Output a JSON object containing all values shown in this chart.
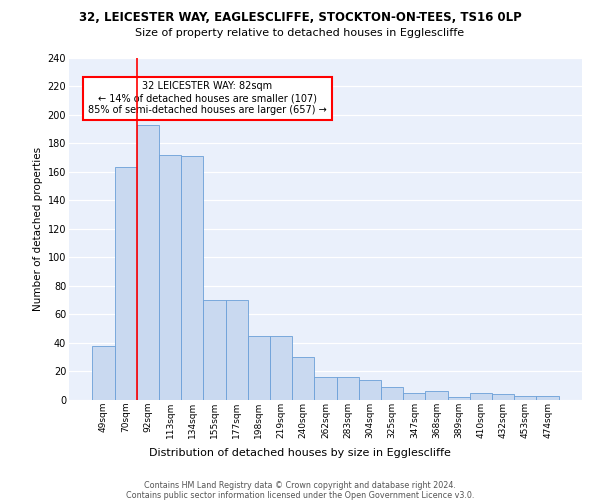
{
  "title1": "32, LEICESTER WAY, EAGLESCLIFFE, STOCKTON-ON-TEES, TS16 0LP",
  "title2": "Size of property relative to detached houses in Egglescliffe",
  "xlabel": "Distribution of detached houses by size in Egglescliffe",
  "ylabel": "Number of detached properties",
  "categories": [
    "49sqm",
    "70sqm",
    "92sqm",
    "113sqm",
    "134sqm",
    "155sqm",
    "177sqm",
    "198sqm",
    "219sqm",
    "240sqm",
    "262sqm",
    "283sqm",
    "304sqm",
    "325sqm",
    "347sqm",
    "368sqm",
    "389sqm",
    "410sqm",
    "432sqm",
    "453sqm",
    "474sqm"
  ],
  "values": [
    38,
    163,
    193,
    172,
    171,
    70,
    70,
    45,
    45,
    30,
    16,
    16,
    14,
    9,
    5,
    6,
    2,
    5,
    4,
    3,
    3
  ],
  "bar_color": "#c9d9f0",
  "bar_edge_color": "#6a9fd8",
  "redline_x": 1.5,
  "annotation_text": "32 LEICESTER WAY: 82sqm\n← 14% of detached houses are smaller (107)\n85% of semi-detached houses are larger (657) →",
  "annotation_box_color": "white",
  "annotation_box_edge": "red",
  "footer": "Contains HM Land Registry data © Crown copyright and database right 2024.\nContains public sector information licensed under the Open Government Licence v3.0.",
  "ylim": [
    0,
    240
  ],
  "yticks": [
    0,
    20,
    40,
    60,
    80,
    100,
    120,
    140,
    160,
    180,
    200,
    220,
    240
  ],
  "background_color": "#eaf0fb"
}
